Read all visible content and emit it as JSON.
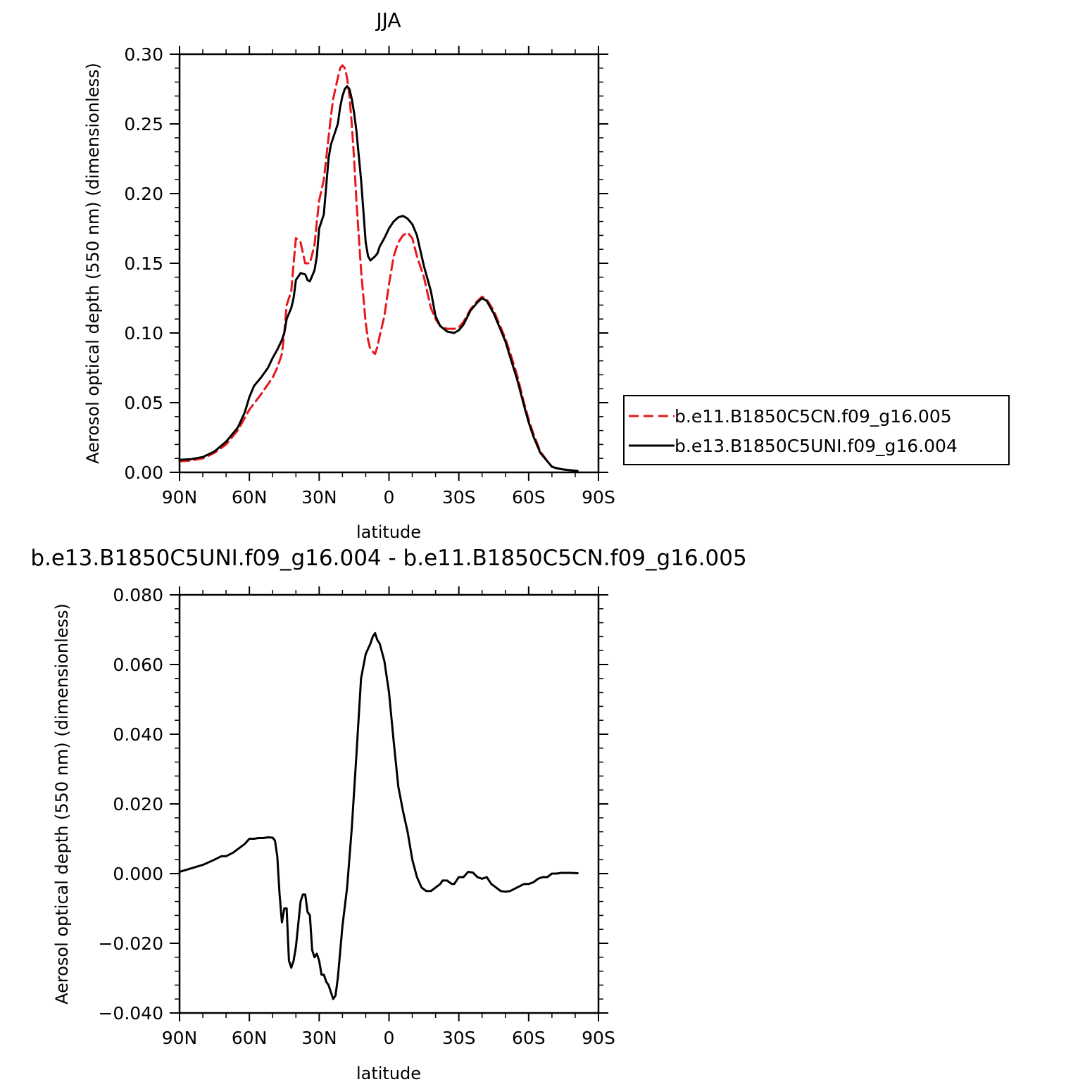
{
  "chart_data": [
    {
      "type": "line",
      "title": "JJA",
      "xlabel": "latitude",
      "ylabel": "Aerosol optical depth (550 nm) (dimensionless)",
      "xlim": [
        90,
        -90
      ],
      "ylim": [
        0.0,
        0.3
      ],
      "x_ticks": [
        90,
        60,
        30,
        0,
        -30,
        -60,
        -90
      ],
      "x_tick_labels": [
        "90N",
        "60N",
        "30N",
        "0",
        "30S",
        "60S",
        "90S"
      ],
      "y_ticks": [
        0.0,
        0.05,
        0.1,
        0.15,
        0.2,
        0.25,
        0.3
      ],
      "y_tick_labels": [
        "0.00",
        "0.05",
        "0.10",
        "0.15",
        "0.20",
        "0.25",
        "0.30"
      ],
      "grid": false,
      "legend_position": "right",
      "series": [
        {
          "name": "b.e11.B1850C5CN.f09_g16.005",
          "color": "#e8171c",
          "dash": "dashed",
          "x": [
            90,
            85,
            80,
            75,
            70,
            65,
            60,
            55,
            50,
            48,
            46,
            45,
            44,
            42,
            41,
            40,
            38,
            36,
            34,
            32,
            31,
            30,
            28,
            26,
            25,
            24,
            22,
            21,
            20,
            19,
            18,
            17,
            16,
            15,
            14,
            12,
            10,
            9,
            8,
            6,
            5,
            4,
            2,
            0,
            -2,
            -4,
            -6,
            -8,
            -10,
            -12,
            -15,
            -18,
            -20,
            -22,
            -25,
            -28,
            -30,
            -32,
            -35,
            -38,
            -40,
            -42,
            -45,
            -48,
            -50,
            -52,
            -55,
            -58,
            -60,
            -62,
            -65,
            -68,
            -70,
            -72,
            -75,
            -78,
            -81
          ],
          "y": [
            0.008,
            0.0085,
            0.01,
            0.014,
            0.02,
            0.03,
            0.045,
            0.056,
            0.068,
            0.075,
            0.085,
            0.1,
            0.12,
            0.13,
            0.15,
            0.168,
            0.165,
            0.15,
            0.15,
            0.163,
            0.18,
            0.195,
            0.21,
            0.24,
            0.255,
            0.268,
            0.283,
            0.29,
            0.292,
            0.29,
            0.283,
            0.27,
            0.25,
            0.225,
            0.195,
            0.145,
            0.107,
            0.095,
            0.088,
            0.085,
            0.09,
            0.098,
            0.112,
            0.135,
            0.155,
            0.165,
            0.17,
            0.172,
            0.168,
            0.155,
            0.14,
            0.118,
            0.11,
            0.105,
            0.103,
            0.103,
            0.104,
            0.108,
            0.117,
            0.123,
            0.126,
            0.124,
            0.116,
            0.104,
            0.096,
            0.086,
            0.07,
            0.05,
            0.038,
            0.028,
            0.015,
            0.008,
            0.004,
            0.003,
            0.002,
            0.0015,
            0.001
          ]
        },
        {
          "name": "b.e13.B1850C5UNI.f09_g16.004",
          "color": "#000000",
          "dash": "solid",
          "x": [
            90,
            85,
            80,
            75,
            70,
            65,
            62,
            60,
            58,
            55,
            52,
            50,
            48,
            46,
            45,
            44,
            42,
            41,
            40,
            38,
            36,
            35,
            34,
            32,
            31,
            30,
            28,
            26,
            25,
            24,
            22,
            21,
            20,
            19,
            18,
            17,
            16,
            15,
            14,
            12,
            10,
            9,
            8,
            6,
            5,
            4,
            2,
            0,
            -2,
            -4,
            -6,
            -8,
            -10,
            -12,
            -15,
            -18,
            -20,
            -22,
            -25,
            -28,
            -30,
            -32,
            -35,
            -38,
            -40,
            -42,
            -45,
            -48,
            -50,
            -52,
            -55,
            -58,
            -60,
            -62,
            -65,
            -68,
            -70,
            -72,
            -75,
            -78,
            -81
          ],
          "y": [
            0.009,
            0.0095,
            0.011,
            0.015,
            0.022,
            0.032,
            0.043,
            0.054,
            0.062,
            0.068,
            0.075,
            0.082,
            0.088,
            0.095,
            0.1,
            0.11,
            0.118,
            0.125,
            0.138,
            0.143,
            0.142,
            0.138,
            0.137,
            0.145,
            0.155,
            0.175,
            0.185,
            0.225,
            0.235,
            0.24,
            0.25,
            0.262,
            0.27,
            0.275,
            0.277,
            0.275,
            0.268,
            0.258,
            0.245,
            0.21,
            0.165,
            0.155,
            0.152,
            0.155,
            0.157,
            0.162,
            0.168,
            0.175,
            0.18,
            0.183,
            0.184,
            0.182,
            0.178,
            0.17,
            0.148,
            0.13,
            0.112,
            0.105,
            0.101,
            0.1,
            0.102,
            0.106,
            0.116,
            0.122,
            0.125,
            0.123,
            0.114,
            0.102,
            0.094,
            0.083,
            0.067,
            0.048,
            0.036,
            0.026,
            0.014,
            0.008,
            0.004,
            0.003,
            0.002,
            0.0015,
            0.001
          ]
        }
      ]
    },
    {
      "type": "line",
      "title": "b.e13.B1850C5UNI.f09_g16.004 - b.e11.B1850C5CN.f09_g16.005",
      "xlabel": "latitude",
      "ylabel": "Aerosol optical depth (550 nm) (dimensionless)",
      "xlim": [
        90,
        -90
      ],
      "ylim": [
        -0.04,
        0.08
      ],
      "x_ticks": [
        90,
        60,
        30,
        0,
        -30,
        -60,
        -90
      ],
      "x_tick_labels": [
        "90N",
        "60N",
        "30N",
        "0",
        "30S",
        "60S",
        "90S"
      ],
      "y_ticks": [
        -0.04,
        -0.02,
        0.0,
        0.02,
        0.04,
        0.06,
        0.08
      ],
      "y_tick_labels": [
        "−0.040",
        "−0.020",
        "0.000",
        "0.020",
        "0.040",
        "0.060",
        "0.080"
      ],
      "grid": false,
      "series": [
        {
          "name": "",
          "color": "#000000",
          "dash": "solid",
          "x": [
            90,
            85,
            80,
            75,
            72,
            70,
            67,
            65,
            62,
            60,
            58,
            56,
            54,
            52,
            50,
            49,
            48,
            47,
            46,
            45,
            44,
            43,
            42,
            41,
            40,
            38,
            37,
            36,
            35,
            34,
            33,
            32,
            31,
            30,
            29,
            28,
            27,
            26,
            25,
            24,
            23,
            22,
            20,
            18,
            16,
            14,
            12,
            10,
            8,
            7,
            6,
            5,
            4,
            2,
            0,
            -2,
            -4,
            -6,
            -8,
            -10,
            -12,
            -14,
            -16,
            -18,
            -20,
            -22,
            -23,
            -24,
            -25,
            -26,
            -27,
            -28,
            -30,
            -32,
            -34,
            -36,
            -38,
            -40,
            -42,
            -44,
            -46,
            -48,
            -50,
            -52,
            -55,
            -58,
            -60,
            -62,
            -64,
            -66,
            -68,
            -70,
            -72,
            -74,
            -76,
            -78,
            -81
          ],
          "y": [
            0.0005,
            0.0015,
            0.0025,
            0.004,
            0.005,
            0.005,
            0.006,
            0.007,
            0.0085,
            0.01,
            0.01,
            0.0102,
            0.0102,
            0.0104,
            0.0103,
            0.0095,
            0.005,
            -0.006,
            -0.014,
            -0.01,
            -0.01,
            -0.025,
            -0.027,
            -0.025,
            -0.021,
            -0.008,
            -0.006,
            -0.006,
            -0.011,
            -0.012,
            -0.022,
            -0.024,
            -0.023,
            -0.025,
            -0.029,
            -0.029,
            -0.031,
            -0.032,
            -0.034,
            -0.036,
            -0.035,
            -0.03,
            -0.015,
            -0.004,
            0.013,
            0.034,
            0.056,
            0.063,
            0.066,
            0.068,
            0.069,
            0.067,
            0.066,
            0.061,
            0.052,
            0.038,
            0.025,
            0.018,
            0.012,
            0.004,
            -0.001,
            -0.004,
            -0.005,
            -0.005,
            -0.004,
            -0.003,
            -0.002,
            -0.002,
            -0.002,
            -0.0025,
            -0.003,
            -0.003,
            -0.001,
            -0.001,
            0.0005,
            0.0003,
            -0.001,
            -0.0015,
            -0.001,
            -0.003,
            -0.004,
            -0.005,
            -0.0052,
            -0.005,
            -0.004,
            -0.003,
            -0.003,
            -0.0025,
            -0.0015,
            -0.001,
            -0.001,
            0.0,
            0.0,
            0.0002,
            0.0002,
            0.0002,
            0.0001
          ]
        }
      ]
    }
  ]
}
